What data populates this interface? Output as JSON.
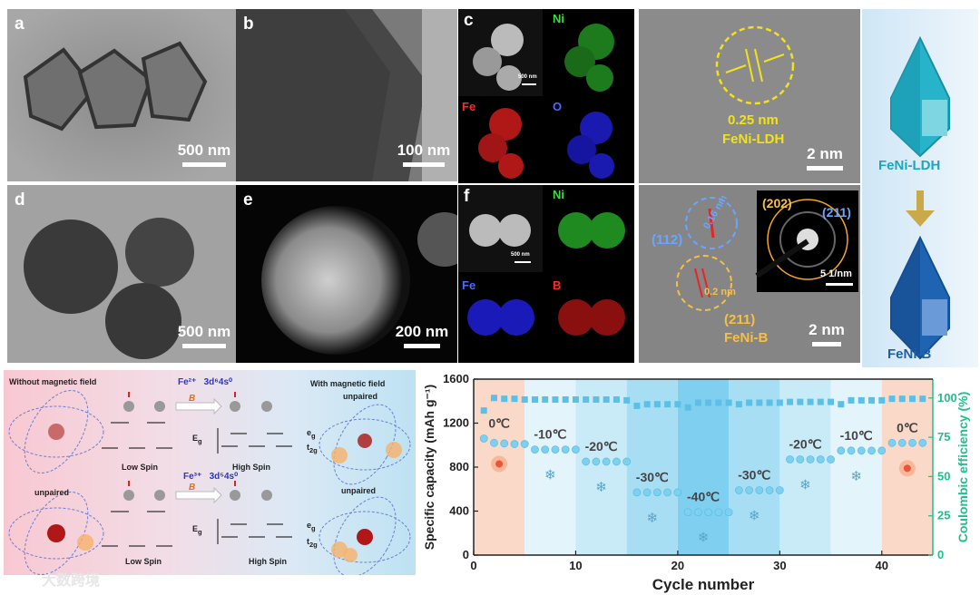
{
  "panels": {
    "a": {
      "label": "a",
      "scale": "500 nm"
    },
    "b": {
      "label": "b",
      "scale": "100 nm"
    },
    "c": {
      "label": "c",
      "inset_scale": "500 nm",
      "maps": [
        "Ni",
        "Fe",
        "O"
      ]
    },
    "hr_top": {
      "spacing": "0.25 nm",
      "phase": "FeNi-LDH",
      "scale": "2 nm"
    },
    "d": {
      "label": "d",
      "scale": "500 nm"
    },
    "e": {
      "label": "e",
      "scale": "200 nm"
    },
    "f": {
      "label": "f",
      "inset_scale": "500 nm",
      "maps": [
        "Ni",
        "Fe",
        "B"
      ]
    },
    "hr_bottom": {
      "plane1": "(112)",
      "spacing1": "0.16 nm",
      "plane2": "(211)",
      "spacing2": "0.2 nm",
      "phase": "FeNi-B",
      "scale": "2 nm"
    },
    "saed": {
      "ring1": "(202)",
      "ring2": "(211)",
      "scale": "5 1/nm"
    },
    "schematic": {
      "top": "FeNi-LDH",
      "bottom": "FeNi-B"
    }
  },
  "spin": {
    "left_title": "Without magnetic field",
    "right_title": "With magnetic field",
    "right_unpaired_top": "unpaired",
    "left_unpaired": "unpaired",
    "right_unpaired_bottom": "unpaired",
    "fe2": "Fe²⁺",
    "fe2_config": "3d⁶4s⁰",
    "fe3": "Fe³⁺",
    "fe3_config": "3d⁵4s⁰",
    "field": "B",
    "low_spin": "Low Spin",
    "high_spin": "High Spin",
    "eg": "e",
    "eg_sub": "g",
    "t2g": "t",
    "t2g_sub": "2g",
    "Eg": "E",
    "Eg_sub": "g"
  },
  "chart_data": {
    "type": "scatter",
    "xlabel": "Cycle number",
    "ylabel": "Specific capacity (mAh g⁻¹)",
    "y2label": "Coulombic efficiency (%)",
    "xlim": [
      0,
      45
    ],
    "ylim": [
      0,
      1600
    ],
    "y2lim": [
      0,
      112
    ],
    "xticks": [
      "0",
      "10",
      "20",
      "30",
      "40"
    ],
    "yticks": [
      "0",
      "400",
      "800",
      "1200",
      "1600"
    ],
    "y2ticks": [
      "0",
      "25",
      "50",
      "75",
      "100"
    ],
    "temperature_segments": [
      {
        "label": "0℃",
        "from": 0,
        "to": 5,
        "color": "#fbd9c8"
      },
      {
        "label": "-10℃",
        "from": 5,
        "to": 10,
        "color": "#e4f4fb"
      },
      {
        "label": "-20℃",
        "from": 10,
        "to": 15,
        "color": "#c9ebf8"
      },
      {
        "label": "-30℃",
        "from": 15,
        "to": 20,
        "color": "#a7def4"
      },
      {
        "label": "-40℃",
        "from": 20,
        "to": 25,
        "color": "#7fd0f0"
      },
      {
        "label": "-30℃",
        "from": 25,
        "to": 30,
        "color": "#a7def4"
      },
      {
        "label": "-20℃",
        "from": 30,
        "to": 35,
        "color": "#c9ebf8"
      },
      {
        "label": "-10℃",
        "from": 35,
        "to": 40,
        "color": "#e4f4fb"
      },
      {
        "label": "0℃",
        "from": 40,
        "to": 45,
        "color": "#fbd9c8"
      }
    ],
    "series": [
      {
        "name": "Specific capacity",
        "x": [
          1,
          2,
          3,
          4,
          5,
          6,
          7,
          8,
          9,
          10,
          11,
          12,
          13,
          14,
          15,
          16,
          17,
          18,
          19,
          20,
          21,
          22,
          23,
          24,
          25,
          26,
          27,
          28,
          29,
          30,
          31,
          32,
          33,
          34,
          35,
          36,
          37,
          38,
          39,
          40,
          41,
          42,
          43,
          44
        ],
        "values": [
          1060,
          1020,
          1015,
          1010,
          1010,
          960,
          960,
          960,
          960,
          960,
          850,
          850,
          850,
          850,
          850,
          570,
          570,
          570,
          570,
          570,
          390,
          390,
          390,
          390,
          390,
          590,
          590,
          590,
          590,
          590,
          870,
          870,
          870,
          870,
          870,
          950,
          950,
          950,
          950,
          950,
          1020,
          1020,
          1020,
          1020
        ]
      },
      {
        "name": "Coulombic efficiency",
        "x": [
          1,
          2,
          3,
          4,
          5,
          6,
          7,
          8,
          9,
          10,
          11,
          12,
          13,
          14,
          15,
          16,
          17,
          18,
          19,
          20,
          21,
          22,
          23,
          24,
          25,
          26,
          27,
          28,
          29,
          30,
          31,
          32,
          33,
          34,
          35,
          36,
          37,
          38,
          39,
          40,
          41,
          42,
          43,
          44
        ],
        "values": [
          92,
          100,
          99.5,
          99.5,
          99,
          99,
          99,
          99,
          99,
          99,
          99,
          99,
          99,
          99,
          98.5,
          95,
          96,
          96,
          96,
          96,
          94,
          97,
          97,
          97,
          97,
          96,
          97,
          97,
          97,
          97,
          97.5,
          97.5,
          97.5,
          97.5,
          97.5,
          96,
          98.5,
          98.5,
          98.5,
          98.5,
          99.5,
          99.5,
          99.5,
          99.5
        ]
      }
    ]
  },
  "watermark": "大数跨境"
}
